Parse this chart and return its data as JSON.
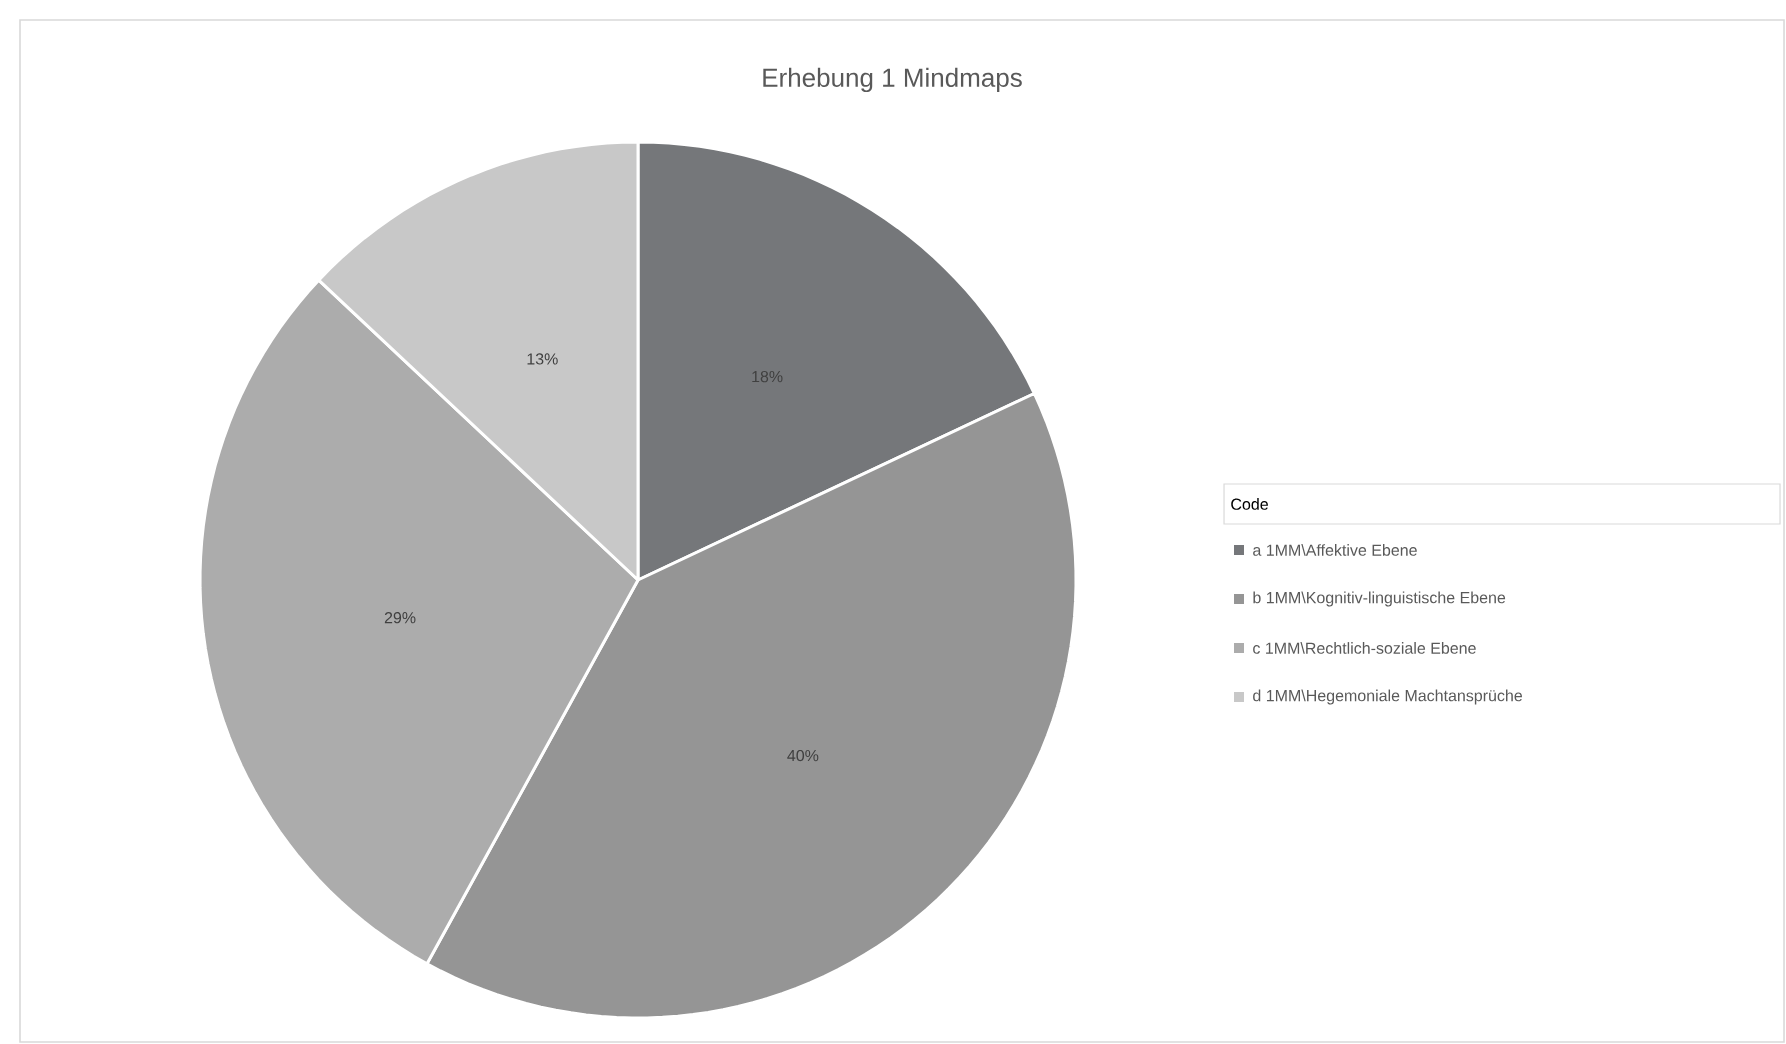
{
  "chart_data": {
    "type": "pie",
    "title": "Erhebung 1 Mindmaps",
    "legend_title": "Code",
    "legend": "right",
    "categories": [
      "a 1MM\\Affektive Ebene",
      "b 1MM\\Kognitiv-linguistische Ebene",
      "c 1MM\\Rechtlich-soziale Ebene",
      "d 1MM\\Hegemoniale Machtansprüche"
    ],
    "values": [
      18,
      40,
      29,
      13
    ],
    "value_labels": [
      "18%",
      "40%",
      "29%",
      "13%"
    ],
    "colors": [
      "#75777a",
      "#959595",
      "#acacac",
      "#c8c8c8"
    ]
  }
}
